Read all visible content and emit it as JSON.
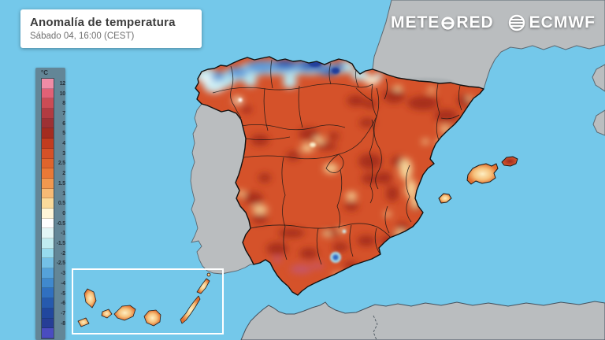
{
  "header": {
    "title": "Anomalía de temperatura",
    "subtitle": "Sábado 04, 16:00 (CEST)"
  },
  "brand": {
    "meteored_prefix": "METE",
    "meteored_suffix": "RED",
    "ecmwf": "ECMWF"
  },
  "legend": {
    "unit": "°C",
    "ticks": [
      "12",
      "10",
      "8",
      "7",
      "6",
      "5",
      "4",
      "3",
      "2.5",
      "2",
      "1.5",
      "1",
      "0.5",
      "0",
      "-0.5",
      "-1",
      "-1.5",
      "-2",
      "-2.5",
      "-3",
      "-4",
      "-5",
      "-6",
      "-7",
      "-8"
    ],
    "colors": [
      "#F08CA6",
      "#E26176",
      "#CB4C55",
      "#B23B41",
      "#9D3134",
      "#A42C20",
      "#C23C1F",
      "#D55127",
      "#DF642C",
      "#E97936",
      "#F1984F",
      "#F6BA75",
      "#FADB9B",
      "#FEF6D8",
      "#FFFFFF",
      "#E2F6F6",
      "#C0ECF0",
      "#97DBEE",
      "#74C0E6",
      "#55A2DA",
      "#4089CE",
      "#3070C0",
      "#265AAE",
      "#21479E",
      "#263E96",
      "#4A4CC0"
    ]
  },
  "map": {
    "sea_color": "#74C8EA",
    "neutral_land_color": "#BABDBF",
    "spain_base_color": "#D5522A",
    "anomaly_hot_color": "#A1291B",
    "anomaly_cold_color": "#2F5CB4",
    "region_border_color": "#161616"
  }
}
